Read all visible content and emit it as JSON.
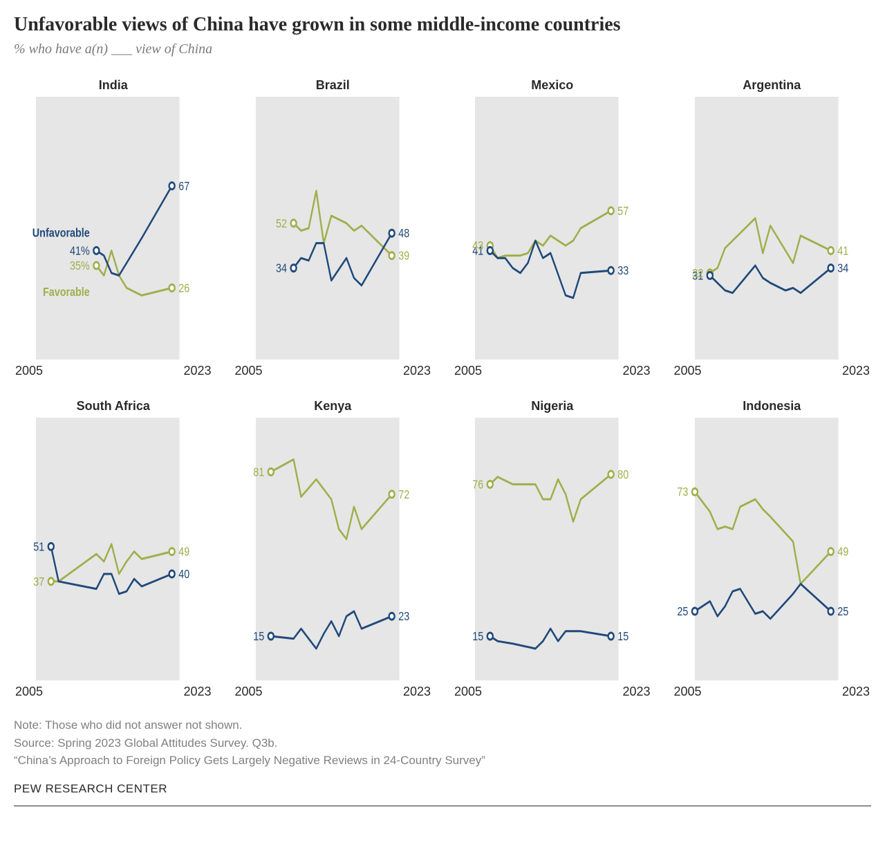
{
  "title": "Unfavorable views of China have grown in some middle-income countries",
  "subtitle": "% who have a(n) ___ view of China",
  "colors": {
    "unfavorable": "#20497a",
    "favorable": "#a0ae4b",
    "plot_bg": "#e6e6e6",
    "page_bg": "#ffffff",
    "marker_fill": "#ffffff"
  },
  "chart": {
    "xlim": [
      2005,
      2024
    ],
    "ylim": [
      0,
      100
    ],
    "x_ticks": [
      "2005",
      "2023"
    ],
    "line_width": 3,
    "marker_radius": 5,
    "label_fontsize": 18,
    "title_fontsize": 18
  },
  "series_labels": {
    "unfavorable": "Unfavorable",
    "favorable": "Favorable"
  },
  "panels": [
    {
      "name": "India",
      "show_series_labels": true,
      "start_labels_pct": true,
      "unfavorable": {
        "start_label": "41%",
        "end_label": "67",
        "points": [
          [
            2013,
            41
          ],
          [
            2014,
            39
          ],
          [
            2015,
            32
          ],
          [
            2016,
            31
          ],
          [
            2019,
            46
          ],
          [
            2023,
            67
          ]
        ]
      },
      "favorable": {
        "start_label": "35%",
        "end_label": "26",
        "points": [
          [
            2013,
            35
          ],
          [
            2014,
            31
          ],
          [
            2015,
            41
          ],
          [
            2016,
            31
          ],
          [
            2017,
            26
          ],
          [
            2019,
            23
          ],
          [
            2023,
            26
          ]
        ]
      }
    },
    {
      "name": "Brazil",
      "unfavorable": {
        "start_label": "34",
        "end_label": "48",
        "points": [
          [
            2010,
            34
          ],
          [
            2011,
            38
          ],
          [
            2012,
            37
          ],
          [
            2013,
            44
          ],
          [
            2014,
            44
          ],
          [
            2015,
            29
          ],
          [
            2017,
            38
          ],
          [
            2018,
            30
          ],
          [
            2019,
            27
          ],
          [
            2023,
            48
          ]
        ]
      },
      "favorable": {
        "start_label": "52",
        "end_label": "39",
        "points": [
          [
            2010,
            52
          ],
          [
            2011,
            49
          ],
          [
            2012,
            50
          ],
          [
            2013,
            65
          ],
          [
            2014,
            44
          ],
          [
            2015,
            55
          ],
          [
            2017,
            52
          ],
          [
            2018,
            49
          ],
          [
            2019,
            51
          ],
          [
            2023,
            39
          ]
        ]
      }
    },
    {
      "name": "Mexico",
      "unfavorable": {
        "start_label": "41",
        "end_label": "33",
        "points": [
          [
            2007,
            41
          ],
          [
            2008,
            38
          ],
          [
            2009,
            38
          ],
          [
            2010,
            34
          ],
          [
            2011,
            32
          ],
          [
            2012,
            36
          ],
          [
            2013,
            45
          ],
          [
            2014,
            38
          ],
          [
            2015,
            40
          ],
          [
            2017,
            23
          ],
          [
            2018,
            22
          ],
          [
            2019,
            32
          ],
          [
            2023,
            33
          ]
        ]
      },
      "favorable": {
        "start_label": "43",
        "end_label": "57",
        "points": [
          [
            2007,
            43
          ],
          [
            2008,
            38
          ],
          [
            2009,
            39
          ],
          [
            2010,
            39
          ],
          [
            2011,
            39
          ],
          [
            2012,
            40
          ],
          [
            2013,
            45
          ],
          [
            2014,
            43
          ],
          [
            2015,
            47
          ],
          [
            2017,
            43
          ],
          [
            2018,
            45
          ],
          [
            2019,
            50
          ],
          [
            2023,
            57
          ]
        ]
      }
    },
    {
      "name": "Argentina",
      "unfavorable": {
        "start_label": "31",
        "end_label": "34",
        "points": [
          [
            2007,
            31
          ],
          [
            2008,
            28
          ],
          [
            2009,
            25
          ],
          [
            2010,
            24
          ],
          [
            2013,
            35
          ],
          [
            2014,
            30
          ],
          [
            2015,
            28
          ],
          [
            2017,
            25
          ],
          [
            2018,
            26
          ],
          [
            2019,
            24
          ],
          [
            2023,
            34
          ]
        ]
      },
      "favorable": {
        "start_label": "32",
        "end_label": "41",
        "points": [
          [
            2007,
            32
          ],
          [
            2008,
            34
          ],
          [
            2009,
            42
          ],
          [
            2010,
            45
          ],
          [
            2013,
            54
          ],
          [
            2014,
            40
          ],
          [
            2015,
            51
          ],
          [
            2017,
            41
          ],
          [
            2018,
            36
          ],
          [
            2019,
            47
          ],
          [
            2023,
            41
          ]
        ]
      }
    },
    {
      "name": "South Africa",
      "unfavorable": {
        "start_label": "51",
        "end_label": "40",
        "points": [
          [
            2007,
            51
          ],
          [
            2008,
            37
          ],
          [
            2013,
            34
          ],
          [
            2014,
            40
          ],
          [
            2015,
            40
          ],
          [
            2016,
            32
          ],
          [
            2017,
            33
          ],
          [
            2018,
            38
          ],
          [
            2019,
            35
          ],
          [
            2023,
            40
          ]
        ]
      },
      "favorable": {
        "start_label": "37",
        "end_label": "49",
        "points": [
          [
            2007,
            37
          ],
          [
            2008,
            37
          ],
          [
            2013,
            48
          ],
          [
            2014,
            45
          ],
          [
            2015,
            52
          ],
          [
            2016,
            40
          ],
          [
            2017,
            45
          ],
          [
            2018,
            49
          ],
          [
            2019,
            46
          ],
          [
            2023,
            49
          ]
        ]
      }
    },
    {
      "name": "Kenya",
      "unfavorable": {
        "start_label": "15",
        "end_label": "23",
        "points": [
          [
            2007,
            15
          ],
          [
            2010,
            14
          ],
          [
            2011,
            18
          ],
          [
            2013,
            10
          ],
          [
            2014,
            16
          ],
          [
            2015,
            21
          ],
          [
            2016,
            15
          ],
          [
            2017,
            23
          ],
          [
            2018,
            25
          ],
          [
            2019,
            18
          ],
          [
            2023,
            23
          ]
        ]
      },
      "favorable": {
        "start_label": "81",
        "end_label": "72",
        "points": [
          [
            2007,
            81
          ],
          [
            2010,
            86
          ],
          [
            2011,
            71
          ],
          [
            2013,
            78
          ],
          [
            2014,
            74
          ],
          [
            2015,
            70
          ],
          [
            2016,
            58
          ],
          [
            2017,
            54
          ],
          [
            2018,
            67
          ],
          [
            2019,
            58
          ],
          [
            2023,
            72
          ]
        ]
      }
    },
    {
      "name": "Nigeria",
      "unfavorable": {
        "start_label": "15",
        "end_label": "15",
        "points": [
          [
            2007,
            15
          ],
          [
            2008,
            13
          ],
          [
            2010,
            12
          ],
          [
            2013,
            10
          ],
          [
            2014,
            13
          ],
          [
            2015,
            18
          ],
          [
            2016,
            13
          ],
          [
            2017,
            17
          ],
          [
            2018,
            17
          ],
          [
            2019,
            17
          ],
          [
            2023,
            15
          ]
        ]
      },
      "favorable": {
        "start_label": "76",
        "end_label": "80",
        "points": [
          [
            2007,
            76
          ],
          [
            2008,
            79
          ],
          [
            2010,
            76
          ],
          [
            2013,
            76
          ],
          [
            2014,
            70
          ],
          [
            2015,
            70
          ],
          [
            2016,
            78
          ],
          [
            2017,
            72
          ],
          [
            2018,
            61
          ],
          [
            2019,
            70
          ],
          [
            2023,
            80
          ]
        ]
      }
    },
    {
      "name": "Indonesia",
      "unfavorable": {
        "start_label": "25",
        "end_label": "25",
        "points": [
          [
            2005,
            25
          ],
          [
            2007,
            29
          ],
          [
            2008,
            23
          ],
          [
            2009,
            27
          ],
          [
            2010,
            33
          ],
          [
            2011,
            34
          ],
          [
            2013,
            24
          ],
          [
            2014,
            25
          ],
          [
            2015,
            22
          ],
          [
            2018,
            32
          ],
          [
            2019,
            36
          ],
          [
            2023,
            25
          ]
        ]
      },
      "favorable": {
        "start_label": "73",
        "end_label": "49",
        "points": [
          [
            2005,
            73
          ],
          [
            2007,
            65
          ],
          [
            2008,
            58
          ],
          [
            2009,
            59
          ],
          [
            2010,
            58
          ],
          [
            2011,
            67
          ],
          [
            2013,
            70
          ],
          [
            2014,
            66
          ],
          [
            2015,
            63
          ],
          [
            2018,
            53
          ],
          [
            2019,
            36
          ],
          [
            2023,
            49
          ]
        ]
      }
    }
  ],
  "notes": [
    "Note: Those who did not answer not shown.",
    "Source: Spring 2023 Global Attitudes Survey. Q3b.",
    "“China’s Approach to Foreign Policy Gets Largely Negative Reviews in 24-Country Survey”"
  ],
  "attribution": "PEW RESEARCH CENTER"
}
